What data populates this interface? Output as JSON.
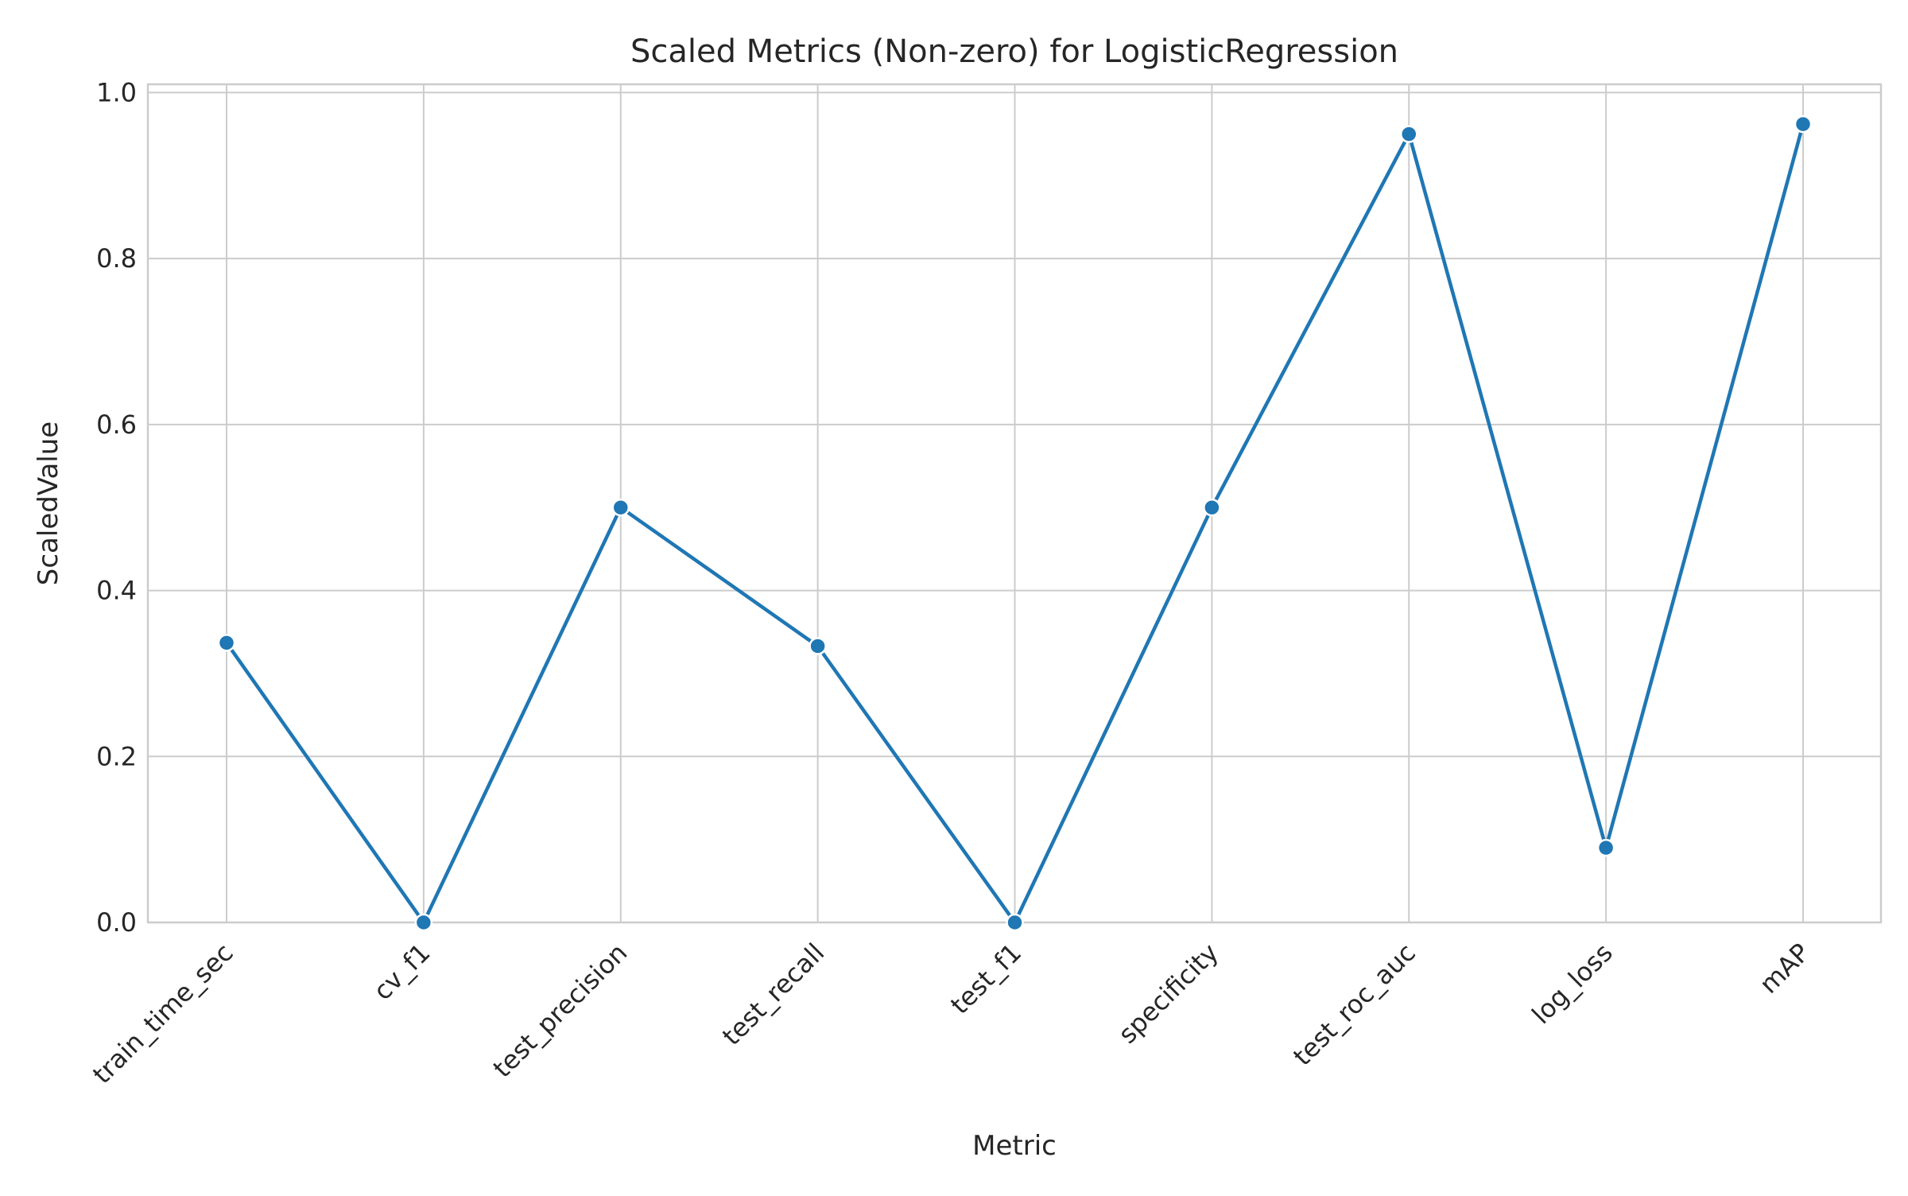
{
  "chart_data": {
    "type": "line",
    "title": "Scaled Metrics (Non-zero) for LogisticRegression",
    "xlabel": "Metric",
    "ylabel": "ScaledValue",
    "categories": [
      "train_time_sec",
      "cv_f1",
      "test_precision",
      "test_recall",
      "test_f1",
      "specificity",
      "test_roc_auc",
      "log_loss",
      "mAP"
    ],
    "series": [
      {
        "name": "ScaledValue",
        "color": "#1f77b4",
        "values": [
          0.337,
          0.0,
          0.5,
          0.333,
          0.0,
          0.5,
          0.95,
          0.09,
          0.962
        ]
      }
    ],
    "ylim": [
      0.0,
      1.01
    ],
    "yticks": [
      0.0,
      0.2,
      0.4,
      0.6,
      0.8,
      1.0
    ],
    "ytick_labels": [
      "0.0",
      "0.2",
      "0.4",
      "0.6",
      "0.8",
      "1.0"
    ],
    "xtick_rotation": 45,
    "grid": true,
    "legend": "none"
  }
}
